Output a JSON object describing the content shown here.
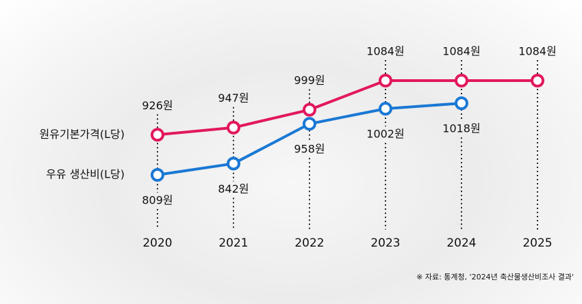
{
  "chart_data": {
    "type": "line",
    "categories": [
      "2020",
      "2021",
      "2022",
      "2023",
      "2024",
      "2025"
    ],
    "series": [
      {
        "name": "원유기본가격(L당)",
        "color": "#e2185c",
        "values": [
          926,
          947,
          999,
          1084,
          1084,
          1084
        ],
        "value_labels": [
          "926원",
          "947원",
          "999원",
          "1084원",
          "1084원",
          "1084원"
        ]
      },
      {
        "name": "우유 생산비(L당)",
        "color": "#1a78d4",
        "values": [
          809,
          842,
          958,
          1002,
          1018,
          null
        ],
        "value_labels": [
          "809원",
          "842원",
          "958원",
          "1002원",
          "1018원",
          null
        ]
      }
    ],
    "source": "※ 자료: 통계청, '2024년 축산물생산비조사 결과'"
  }
}
